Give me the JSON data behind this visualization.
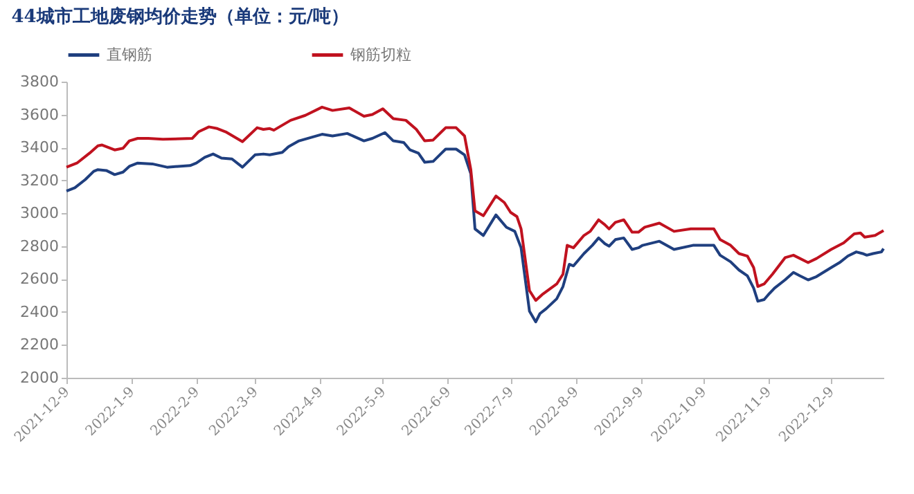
{
  "chart_data": {
    "type": "line",
    "title": "44城市工地废钢均价走势（单位：元/吨）",
    "legend": "top",
    "grid": false,
    "marker": "none",
    "line_style": "solid",
    "xlim": [
      "2021-12-09",
      "2023-01-03"
    ],
    "xticks": [
      {
        "value": "2021-12-09",
        "label": "2021-12-9"
      },
      {
        "value": "2022-01-09",
        "label": "2022-1-9"
      },
      {
        "value": "2022-02-09",
        "label": "2022-2-9"
      },
      {
        "value": "2022-03-09",
        "label": "2022-3-9"
      },
      {
        "value": "2022-04-09",
        "label": "2022-4-9"
      },
      {
        "value": "2022-05-09",
        "label": "2022-5-9"
      },
      {
        "value": "2022-06-09",
        "label": "2022-6-9"
      },
      {
        "value": "2022-07-09",
        "label": "2022-7-9"
      },
      {
        "value": "2022-08-09",
        "label": "2022-8-9"
      },
      {
        "value": "2022-09-09",
        "label": "2022-9-9"
      },
      {
        "value": "2022-10-09",
        "label": "2022-10-9"
      },
      {
        "value": "2022-11-09",
        "label": "2022-11-9"
      },
      {
        "value": "2022-12-09",
        "label": "2022-12-9"
      }
    ],
    "ylim": [
      2000,
      3800
    ],
    "yticks": [
      2000,
      2200,
      2400,
      2600,
      2800,
      3000,
      3200,
      3400,
      3600,
      3800
    ],
    "series": [
      {
        "name": "直钢筋",
        "color": "#1f3f7f",
        "x": [
          "2021-12-09",
          "2021-12-13",
          "2021-12-18",
          "2021-12-22",
          "2021-12-24",
          "2021-12-28",
          "2022-01-01",
          "2022-01-05",
          "2022-01-08",
          "2022-01-12",
          "2022-01-19",
          "2022-01-26",
          "2022-02-06",
          "2022-02-09",
          "2022-02-13",
          "2022-02-17",
          "2022-02-21",
          "2022-02-26",
          "2022-03-03",
          "2022-03-09",
          "2022-03-13",
          "2022-03-16",
          "2022-03-22",
          "2022-03-25",
          "2022-03-30",
          "2022-04-10",
          "2022-04-15",
          "2022-04-22",
          "2022-04-30",
          "2022-05-04",
          "2022-05-10",
          "2022-05-14",
          "2022-05-19",
          "2022-05-22",
          "2022-05-26",
          "2022-05-29",
          "2022-06-02",
          "2022-06-06",
          "2022-06-08",
          "2022-06-13",
          "2022-06-17",
          "2022-06-20",
          "2022-06-22",
          "2022-06-26",
          "2022-07-02",
          "2022-07-07",
          "2022-07-11",
          "2022-07-14",
          "2022-07-18",
          "2022-07-21",
          "2022-07-23",
          "2022-07-26",
          "2022-07-31",
          "2022-08-03",
          "2022-08-06",
          "2022-08-08",
          "2022-08-13",
          "2022-08-17",
          "2022-08-20",
          "2022-08-23",
          "2022-08-25",
          "2022-08-28",
          "2022-09-01",
          "2022-09-05",
          "2022-09-08",
          "2022-09-10",
          "2022-09-18",
          "2022-09-25",
          "2022-10-04",
          "2022-10-14",
          "2022-10-17",
          "2022-10-22",
          "2022-10-26",
          "2022-10-30",
          "2022-11-02",
          "2022-11-04",
          "2022-11-07",
          "2022-11-09",
          "2022-11-12",
          "2022-11-17",
          "2022-11-21",
          "2022-11-24",
          "2022-11-28",
          "2022-12-02",
          "2022-12-09",
          "2022-12-13",
          "2022-12-17",
          "2022-12-21",
          "2022-12-24",
          "2022-12-26",
          "2022-12-29",
          "2023-01-02",
          "2023-01-03"
        ],
        "values": [
          3135,
          3155,
          3205,
          3255,
          3265,
          3260,
          3235,
          3250,
          3285,
          3305,
          3300,
          3280,
          3290,
          3305,
          3340,
          3360,
          3335,
          3330,
          3280,
          3355,
          3360,
          3355,
          3370,
          3405,
          3440,
          3480,
          3470,
          3485,
          3440,
          3455,
          3490,
          3440,
          3430,
          3385,
          3365,
          3310,
          3315,
          3365,
          3390,
          3390,
          3355,
          3240,
          2905,
          2865,
          2990,
          2915,
          2890,
          2790,
          2405,
          2340,
          2390,
          2420,
          2480,
          2555,
          2690,
          2680,
          2755,
          2805,
          2850,
          2815,
          2800,
          2840,
          2850,
          2780,
          2790,
          2805,
          2830,
          2780,
          2805,
          2805,
          2745,
          2705,
          2655,
          2620,
          2545,
          2465,
          2475,
          2505,
          2545,
          2595,
          2640,
          2620,
          2595,
          2615,
          2670,
          2700,
          2740,
          2765,
          2755,
          2745,
          2755,
          2765,
          2785
        ]
      },
      {
        "name": "钢筋切粒",
        "color": "#c0121f",
        "x": [
          "2021-12-09",
          "2021-12-14",
          "2021-12-20",
          "2021-12-24",
          "2021-12-26",
          "2022-01-01",
          "2022-01-05",
          "2022-01-08",
          "2022-01-12",
          "2022-01-17",
          "2022-01-24",
          "2022-02-07",
          "2022-02-10",
          "2022-02-15",
          "2022-02-19",
          "2022-02-23",
          "2022-03-03",
          "2022-03-10",
          "2022-03-13",
          "2022-03-16",
          "2022-03-18",
          "2022-03-26",
          "2022-04-02",
          "2022-04-10",
          "2022-04-15",
          "2022-04-23",
          "2022-04-30",
          "2022-05-04",
          "2022-05-09",
          "2022-05-14",
          "2022-05-20",
          "2022-05-25",
          "2022-05-29",
          "2022-06-02",
          "2022-06-06",
          "2022-06-08",
          "2022-06-13",
          "2022-06-17",
          "2022-06-20",
          "2022-06-22",
          "2022-06-26",
          "2022-07-02",
          "2022-07-06",
          "2022-07-09",
          "2022-07-12",
          "2022-07-14",
          "2022-07-18",
          "2022-07-21",
          "2022-07-24",
          "2022-07-31",
          "2022-08-03",
          "2022-08-05",
          "2022-08-08",
          "2022-08-13",
          "2022-08-16",
          "2022-08-20",
          "2022-08-23",
          "2022-08-25",
          "2022-08-28",
          "2022-09-01",
          "2022-09-05",
          "2022-09-08",
          "2022-09-11",
          "2022-09-18",
          "2022-09-25",
          "2022-10-03",
          "2022-10-14",
          "2022-10-17",
          "2022-10-22",
          "2022-10-26",
          "2022-10-30",
          "2022-11-02",
          "2022-11-04",
          "2022-11-07",
          "2022-11-11",
          "2022-11-17",
          "2022-11-21",
          "2022-11-28",
          "2022-12-02",
          "2022-12-09",
          "2022-12-15",
          "2022-12-20",
          "2022-12-23",
          "2022-12-25",
          "2022-12-30",
          "2023-01-03"
        ],
        "values": [
          3280,
          3305,
          3365,
          3410,
          3415,
          3385,
          3395,
          3440,
          3455,
          3455,
          3450,
          3455,
          3495,
          3525,
          3515,
          3495,
          3435,
          3520,
          3510,
          3515,
          3505,
          3565,
          3595,
          3645,
          3625,
          3640,
          3590,
          3600,
          3635,
          3575,
          3565,
          3510,
          3440,
          3445,
          3495,
          3520,
          3520,
          3470,
          3265,
          3015,
          2985,
          3105,
          3065,
          3005,
          2980,
          2905,
          2530,
          2470,
          2505,
          2570,
          2630,
          2805,
          2790,
          2865,
          2890,
          2960,
          2930,
          2905,
          2945,
          2960,
          2885,
          2885,
          2915,
          2940,
          2890,
          2905,
          2905,
          2840,
          2805,
          2755,
          2740,
          2670,
          2555,
          2570,
          2630,
          2730,
          2745,
          2700,
          2725,
          2780,
          2820,
          2875,
          2880,
          2855,
          2865,
          2895
        ]
      }
    ]
  }
}
